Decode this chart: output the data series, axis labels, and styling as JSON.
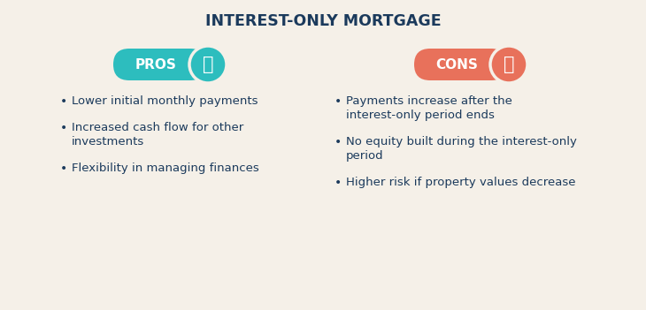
{
  "title": "INTEREST-ONLY MORTGAGE",
  "title_color": "#1b3a5c",
  "background_color": "#f5f0e8",
  "pros_label": "PROS",
  "cons_label": "CONS",
  "pros_color": "#2dbdbe",
  "cons_color": "#e8715b",
  "text_color": "#1b3a5c",
  "bullet_color": "#1b3a5c",
  "pros_items": [
    [
      "Lower initial monthly payments"
    ],
    [
      "Increased cash flow for other",
      "investments"
    ],
    [
      "Flexibility in managing finances"
    ]
  ],
  "cons_items": [
    [
      "Payments increase after the",
      "interest-only period ends"
    ],
    [
      "No equity built during the interest-only",
      "period"
    ],
    [
      "Higher risk if property values decrease"
    ]
  ],
  "fig_width": 7.3,
  "fig_height": 3.51,
  "dpi": 100
}
